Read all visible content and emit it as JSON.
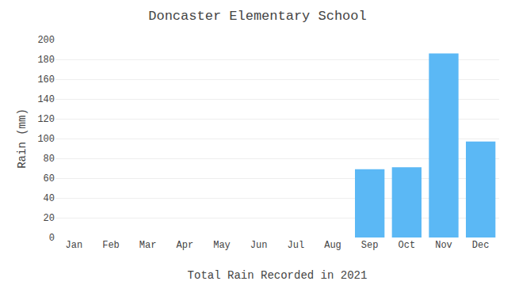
{
  "chart_data": {
    "type": "bar",
    "title": "Doncaster Elementary School",
    "xlabel": "Total Rain Recorded in 2021",
    "ylabel": "Rain (mm)",
    "categories": [
      "Jan",
      "Feb",
      "Mar",
      "Apr",
      "May",
      "Jun",
      "Jul",
      "Aug",
      "Sep",
      "Oct",
      "Nov",
      "Dec"
    ],
    "values": [
      0,
      0,
      0,
      0,
      0,
      0,
      0,
      0,
      69,
      71,
      186,
      97
    ],
    "color": "#5bb8f5",
    "ylim": [
      0,
      200
    ],
    "yticks": [
      0,
      20,
      40,
      60,
      80,
      100,
      120,
      140,
      160,
      180,
      200
    ],
    "grid": true
  }
}
